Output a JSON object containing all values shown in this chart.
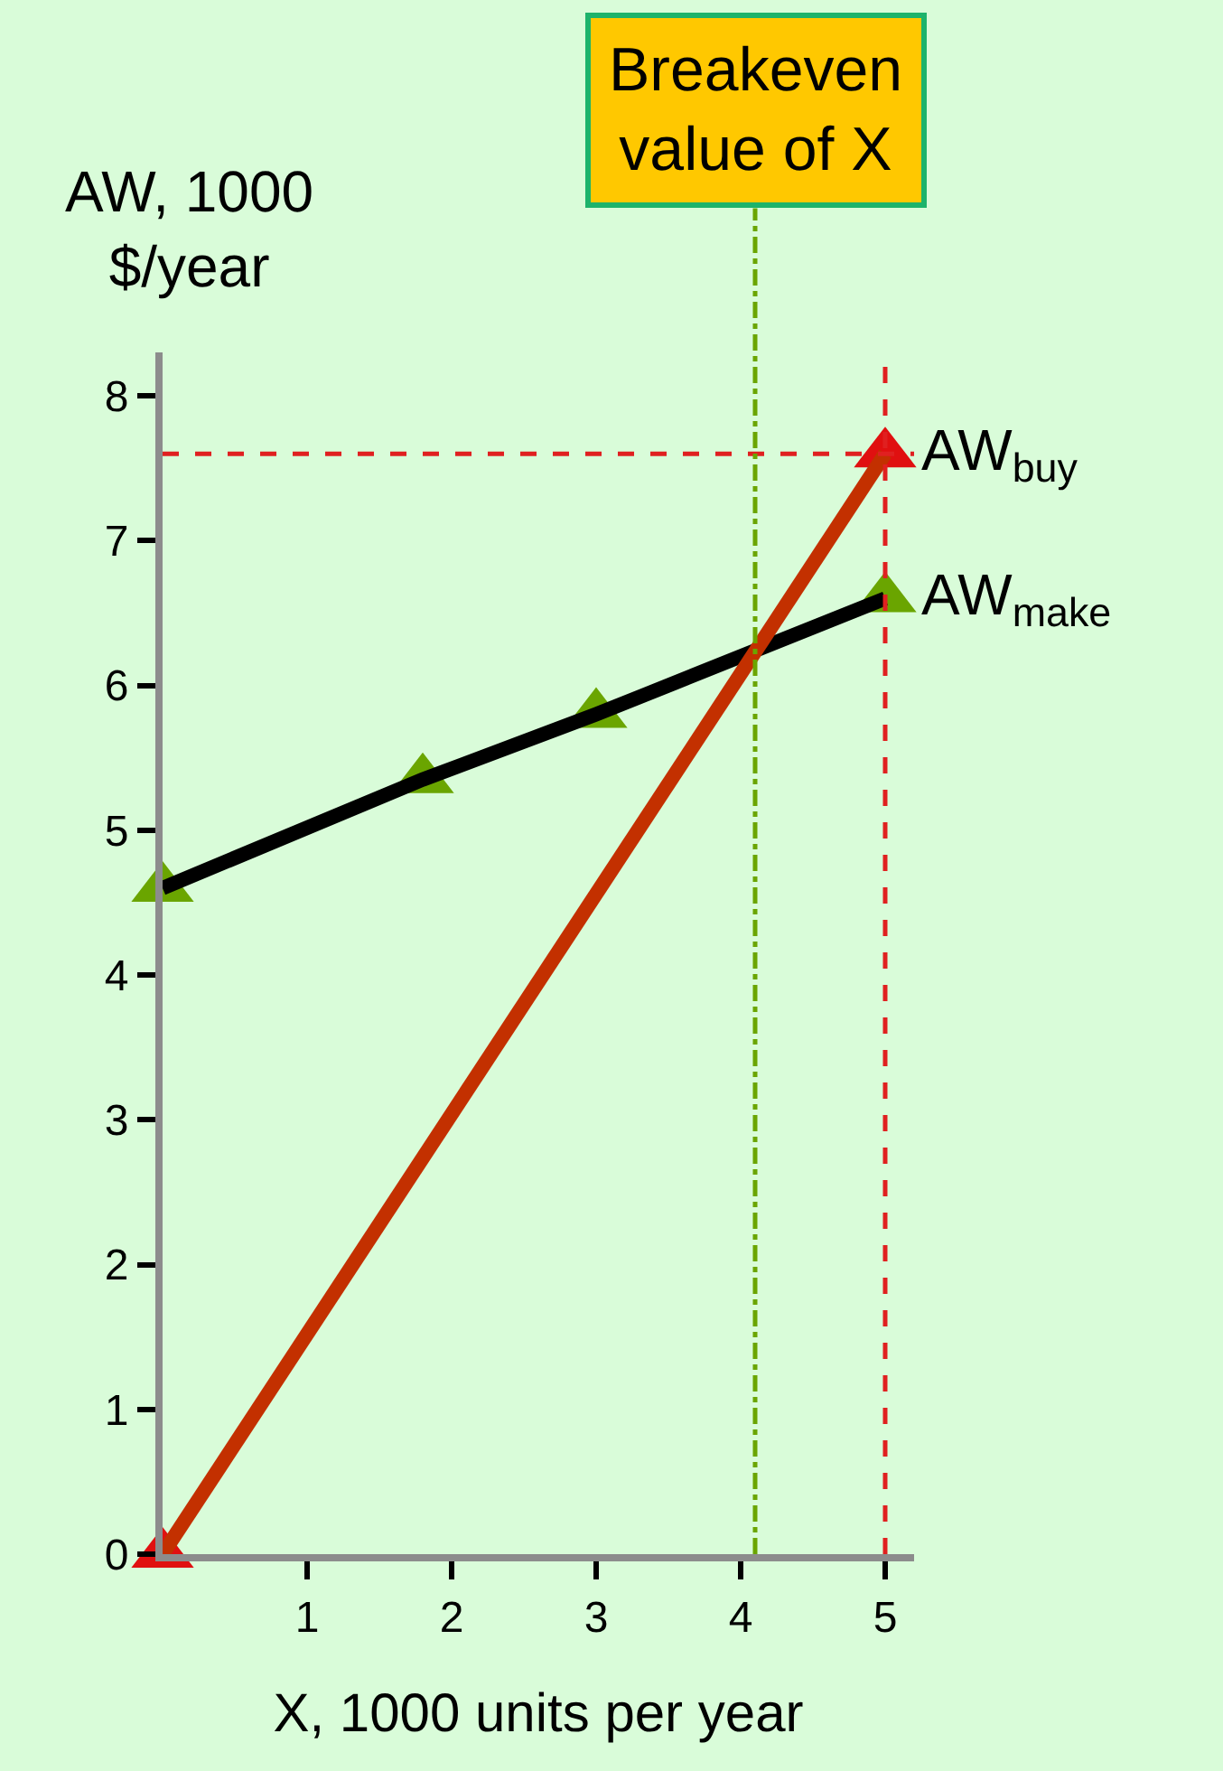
{
  "chart_data": {
    "type": "line",
    "xlabel": "X, 1000 units per year",
    "ylabel": "AW, 1000\n$/year",
    "series": [
      {
        "name": "AW$_{make}$",
        "color": "#000000",
        "colors": [
          "#6aa500",
          "#6aa500",
          "#6aa500",
          "#6aa500"
        ],
        "x": [
          0,
          1.8,
          3,
          5
        ],
        "values": [
          4.6,
          5.35,
          5.8,
          6.6
        ]
      },
      {
        "name": "AW$_{buy}$",
        "color": "#c33000",
        "colors": [
          "#e01010",
          "#e01010"
        ],
        "x": [
          0,
          5
        ],
        "values": [
          0,
          7.6
        ]
      }
    ],
    "marker": "triangle",
    "line_style": "solid",
    "xlim": [
      0,
      5.2
    ],
    "xticks": [
      1,
      2,
      3,
      4,
      5
    ],
    "ylim": [
      0,
      8.3
    ],
    "yticks": [
      0,
      1,
      2,
      3,
      4,
      5,
      6,
      7,
      8
    ],
    "ref_lines": [
      {
        "axis": "y",
        "value": 7.6,
        "color": "#e02020",
        "line_style": "dashed"
      },
      {
        "axis": "x",
        "value": 5,
        "color": "#e02020",
        "line_style": "dashed"
      },
      {
        "axis": "x",
        "value": 4.1,
        "color": "#6aa500",
        "line_style": "dashdot",
        "label": "Breakeven\nvalue of X"
      }
    ],
    "grid": false,
    "legend": false
  }
}
